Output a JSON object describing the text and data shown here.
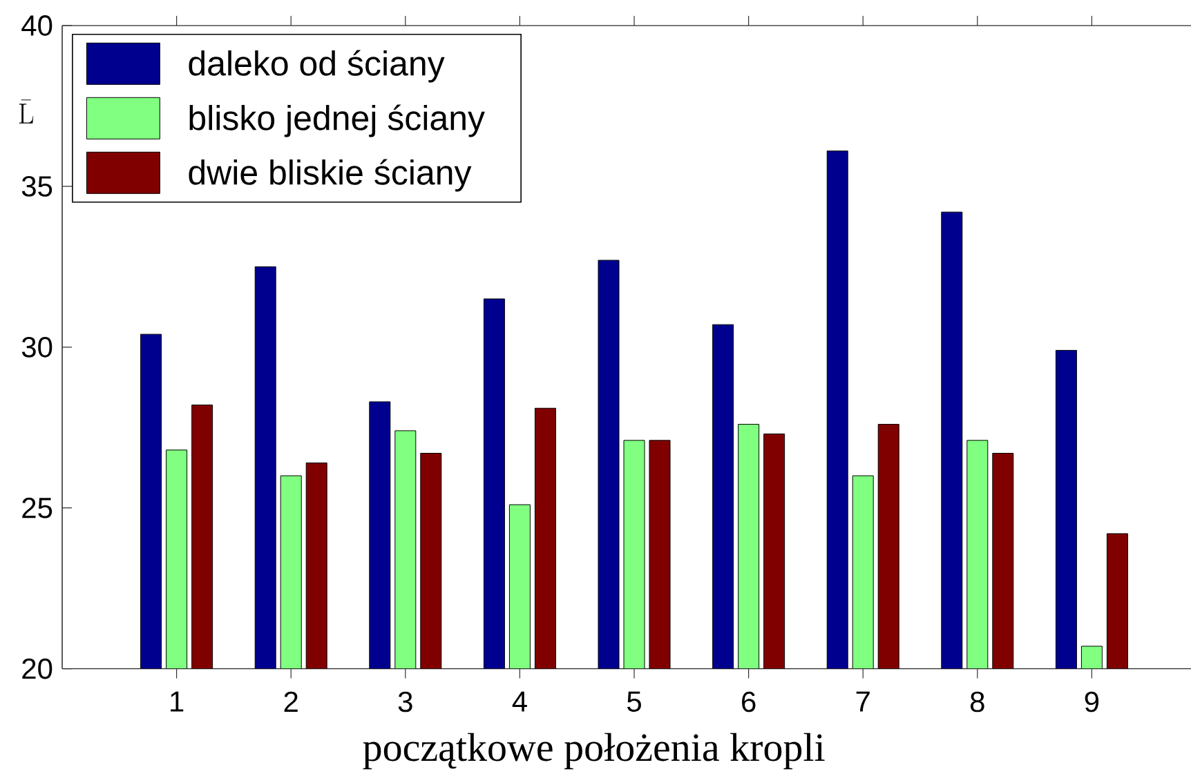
{
  "chart_data": {
    "type": "bar",
    "xlabel": "początkowe położenia kropli",
    "ylabel": "\\bar{\\mathrm{L}}",
    "categories": [
      "1",
      "2",
      "3",
      "4",
      "5",
      "6",
      "7",
      "8",
      "9"
    ],
    "series": [
      {
        "name": "daleko od ściany",
        "color": "#00008f",
        "values": [
          30.4,
          32.5,
          28.3,
          31.5,
          32.7,
          30.7,
          36.1,
          34.2,
          29.9
        ]
      },
      {
        "name": "blisko jednej ściany",
        "color": "#80ff80",
        "values": [
          26.8,
          26.0,
          27.4,
          25.1,
          27.1,
          27.6,
          26.0,
          27.1,
          20.7
        ]
      },
      {
        "name": "dwie bliskie ściany",
        "color": "#800000",
        "values": [
          28.2,
          26.4,
          26.7,
          28.1,
          27.1,
          27.3,
          27.6,
          26.7,
          24.2
        ]
      }
    ],
    "ylim": [
      20,
      40
    ],
    "yticks": [
      20,
      25,
      30,
      35,
      40
    ],
    "legend": "top left"
  }
}
